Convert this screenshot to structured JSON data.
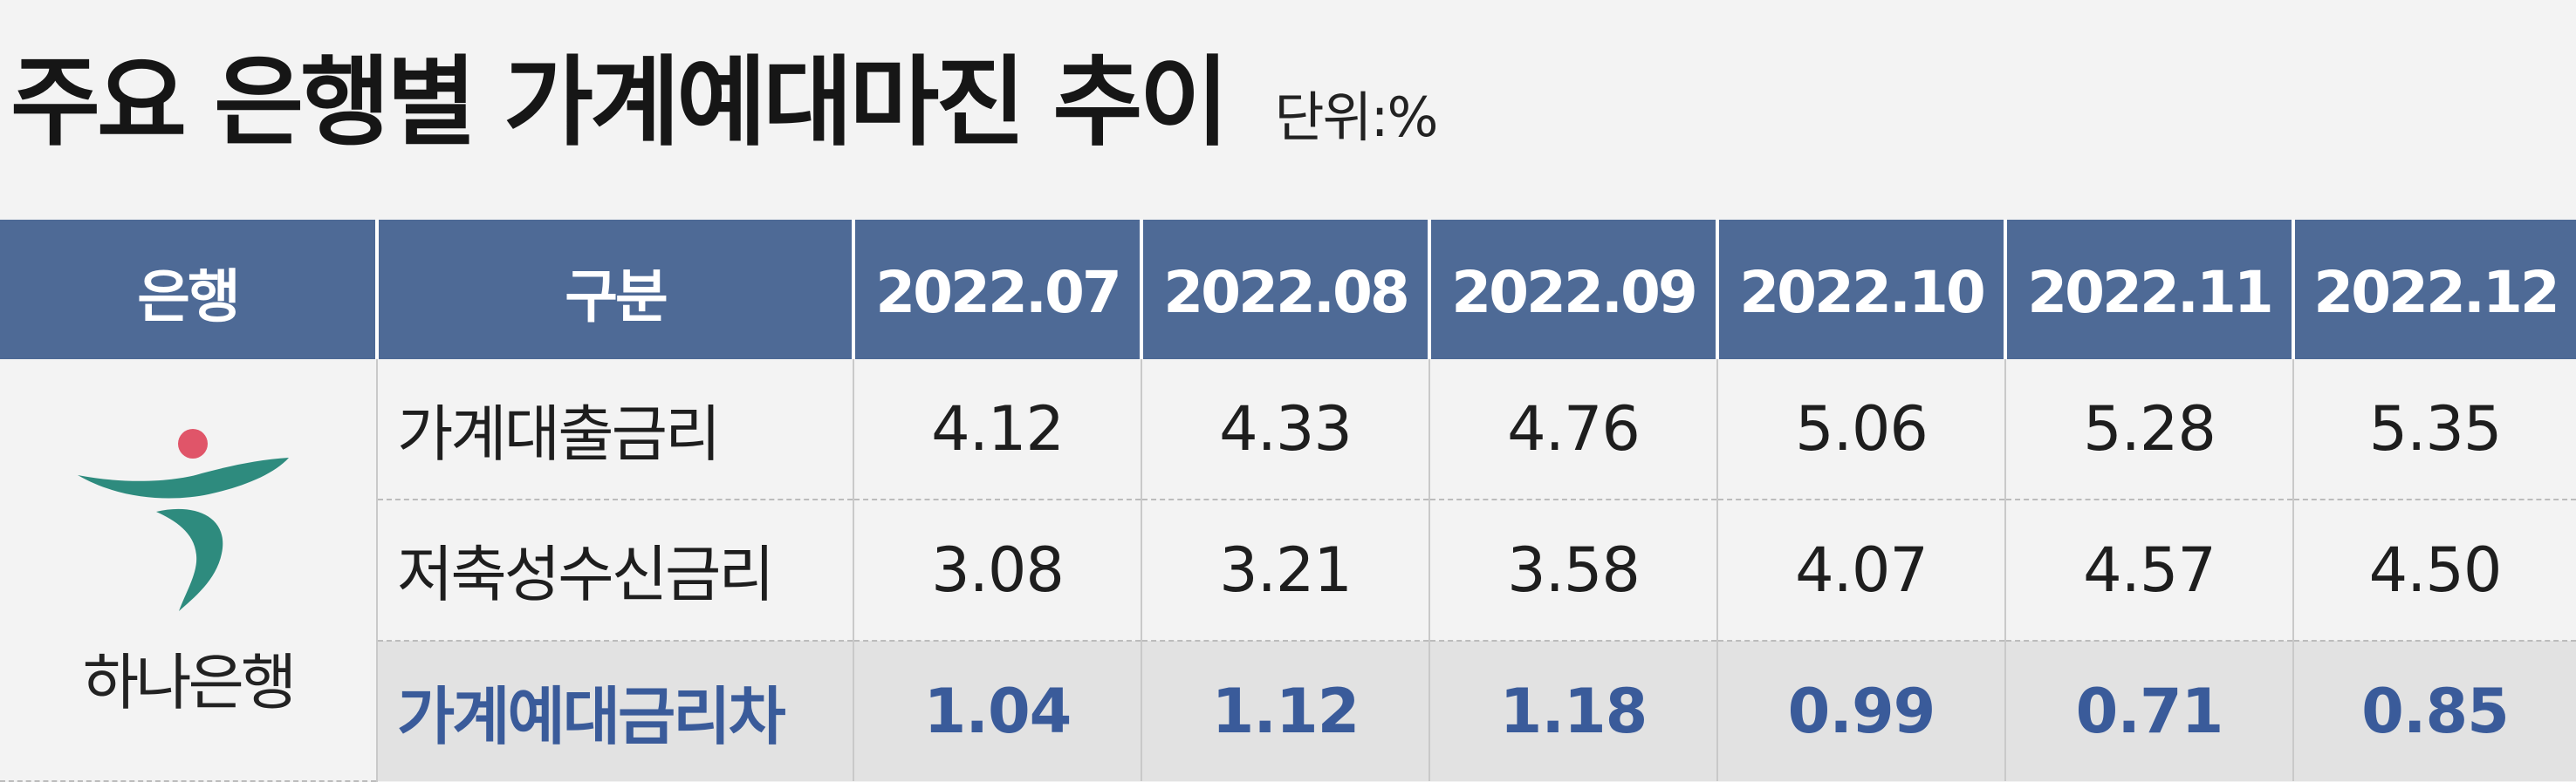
{
  "title": "주요 은행별 가계예대마진 추이",
  "unit": "단위:%",
  "header": {
    "bank_col": "은행",
    "item_col": "구분",
    "months": [
      "2022.07",
      "2022.08",
      "2022.09",
      "2022.10",
      "2022.11",
      "2022.12"
    ]
  },
  "bank": {
    "name": "하나은행",
    "logo_icon": "hana-bank-logo",
    "logo_colors": {
      "primary": "#2e8b7e",
      "dot": "#e05569"
    }
  },
  "rows": [
    {
      "label": "가계대출금리",
      "values": [
        "4.12",
        "4.33",
        "4.76",
        "5.06",
        "5.28",
        "5.35"
      ]
    },
    {
      "label": "저축성수신금리",
      "values": [
        "3.08",
        "3.21",
        "3.58",
        "4.07",
        "4.57",
        "4.50"
      ]
    },
    {
      "label": "가계예대금리차",
      "values": [
        "1.04",
        "1.12",
        "1.18",
        "0.99",
        "0.71",
        "0.85"
      ]
    }
  ],
  "colors": {
    "header_bg": "#4e6a96",
    "highlight_text": "#3a5b9a",
    "highlight_bg": "#e2e2e2"
  }
}
